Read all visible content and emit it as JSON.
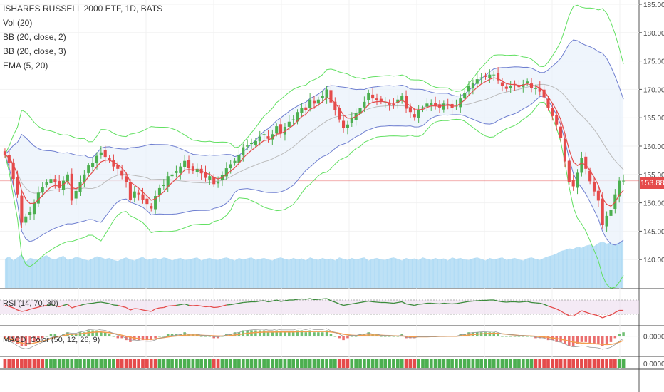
{
  "legend": {
    "title": "ISHARES RUSSELL 2000 ETF, 1D, BATS",
    "studies": [
      "Vol (20)",
      "BB (20, close, 2)",
      "BB (20, close, 3)",
      "EMA (5, 20)"
    ]
  },
  "rsi_label": "RSI (14, 70, 30)",
  "macd_label": "MACD_Color (50, 12, 26, 9)",
  "last_price_label": "153.88",
  "colors": {
    "up": "#4caf50",
    "down": "#e54b4b",
    "bb2": "#6f7fd0",
    "bb3": "#62e062",
    "band_fill": "#e8f1fb",
    "basis": "#bbbbbb",
    "ema": "#e54b4b",
    "volume": "#9fd3f2",
    "rsi": "#3a8a3a",
    "rsi_low": "#e54b4b",
    "rsi_band": "#ecdcef",
    "macd_line": "#f39c4d"
  },
  "chart_data": [
    {
      "type": "candlestick",
      "title": "ISHARES RUSSELL 2000 ETF, 1D, BATS",
      "ylim": [
        135,
        185
      ],
      "yticks": [
        185,
        180,
        175,
        170,
        165,
        160,
        155,
        150,
        145,
        140
      ],
      "ytick_labels": [
        "185.00",
        "180.00",
        "175.00",
        "170.00",
        "165.00",
        "160.00",
        "155.00",
        "150.00",
        "145.00",
        "140.00"
      ],
      "last_price": 153.88,
      "close": [
        158.5,
        157.0,
        154.2,
        151.5,
        146.5,
        147.6,
        148.4,
        150.0,
        151.8,
        152.8,
        153.7,
        154.2,
        153.6,
        152.6,
        153.9,
        155.0,
        150.4,
        152.1,
        153.7,
        155.0,
        156.6,
        157.1,
        158.3,
        158.9,
        158.1,
        157.6,
        156.4,
        156.0,
        154.8,
        153.6,
        150.5,
        152.0,
        151.5,
        150.5,
        149.8,
        149.0,
        151.2,
        152.6,
        153.1,
        154.7,
        155.0,
        155.6,
        156.4,
        157.4,
        156.1,
        155.6,
        156.0,
        155.2,
        154.4,
        154.7,
        153.3,
        153.7,
        154.9,
        156.1,
        156.8,
        157.4,
        158.5,
        159.8,
        160.1,
        160.5,
        160.9,
        161.7,
        162.1,
        161.3,
        162.1,
        163.5,
        162.3,
        163.4,
        164.3,
        164.7,
        166.0,
        166.7,
        166.4,
        168.2,
        167.5,
        168.2,
        168.9,
        170.0,
        167.7,
        166.3,
        164.7,
        163.2,
        163.8,
        164.9,
        165.8,
        166.7,
        167.8,
        169.3,
        168.4,
        168.1,
        167.9,
        167.7,
        167.3,
        167.2,
        168.2,
        168.9,
        166.6,
        166.0,
        165.1,
        166.4,
        166.6,
        167.5,
        167.6,
        167.1,
        166.8,
        167.5,
        167.3,
        166.7,
        167.1,
        168.4,
        169.4,
        170.6,
        171.1,
        171.8,
        172.1,
        172.2,
        172.6,
        172.6,
        171.6,
        170.6,
        170.1,
        170.6,
        170.8,
        170.4,
        170.9,
        171.4,
        170.3,
        170.2,
        169.6,
        168.6,
        166.7,
        165.3,
        163.8,
        161.4,
        157.3,
        153.7,
        152.9,
        155.3,
        157.9,
        156.0,
        153.8,
        152.0,
        150.4,
        146.1,
        147.7,
        148.7,
        151.5,
        153.9,
        153.9
      ],
      "volume_ylim": [
        0,
        100
      ],
      "volume": [
        55,
        60,
        52,
        58,
        64,
        50,
        57,
        55,
        53,
        59,
        62,
        56,
        54,
        58,
        61,
        53,
        55,
        59,
        57,
        54,
        52,
        56,
        60,
        58,
        55,
        57,
        53,
        51,
        55,
        58,
        54,
        52,
        56,
        59,
        53,
        55,
        57,
        54,
        58,
        56,
        52,
        55,
        57,
        53,
        54,
        56,
        58,
        52,
        55,
        57,
        54,
        53,
        56,
        58,
        55,
        52,
        57,
        54,
        56,
        58,
        53,
        55,
        57,
        54,
        52,
        56,
        58,
        55,
        53,
        57,
        54,
        56,
        52,
        58,
        55,
        53,
        57,
        54,
        56,
        52,
        58,
        55,
        53,
        57,
        54,
        56,
        58,
        52,
        55,
        57,
        54,
        53,
        56,
        58,
        55,
        52,
        57,
        54,
        56,
        53,
        58,
        55,
        53,
        57,
        54,
        56,
        52,
        58,
        55,
        57,
        54,
        53,
        56,
        58,
        55,
        52,
        57,
        54,
        56,
        58,
        53,
        55,
        57,
        54,
        52,
        56,
        58,
        55,
        53,
        57,
        60,
        62,
        65,
        70,
        72,
        75,
        74,
        78,
        76,
        80,
        82,
        79,
        85,
        88,
        84,
        86,
        83,
        87,
        90
      ]
    },
    {
      "type": "line",
      "title": "RSI (14, 70, 30)",
      "ylim": [
        0,
        100
      ],
      "band": [
        30,
        70
      ],
      "values": [
        55,
        52,
        48,
        42,
        38,
        40,
        44,
        47,
        50,
        53,
        55,
        57,
        54,
        51,
        55,
        58,
        48,
        52,
        55,
        58,
        60,
        61,
        63,
        64,
        62,
        60,
        56,
        55,
        52,
        49,
        42,
        46,
        45,
        42,
        40,
        38,
        45,
        48,
        49,
        53,
        54,
        55,
        57,
        59,
        55,
        54,
        55,
        53,
        51,
        52,
        49,
        50,
        53,
        56,
        57,
        59,
        61,
        63,
        64,
        65,
        65,
        67,
        68,
        65,
        67,
        70,
        66,
        68,
        70,
        70,
        72,
        73,
        72,
        74,
        71,
        72,
        73,
        74,
        68,
        64,
        59,
        55,
        57,
        59,
        61,
        63,
        65,
        67,
        65,
        64,
        63,
        63,
        62,
        61,
        63,
        65,
        59,
        57,
        55,
        58,
        59,
        61,
        61,
        60,
        59,
        61,
        60,
        59,
        60,
        62,
        64,
        66,
        67,
        68,
        69,
        69,
        70,
        70,
        67,
        65,
        64,
        65,
        65,
        64,
        65,
        66,
        63,
        62,
        61,
        58,
        53,
        49,
        45,
        39,
        32,
        26,
        25,
        33,
        40,
        36,
        32,
        29,
        26,
        20,
        25,
        28,
        35,
        41,
        41
      ]
    },
    {
      "type": "bar",
      "title": "MACD_Color (50, 12, 26, 9)",
      "ylim": [
        -0.01,
        0.005
      ],
      "ytick_labels": [
        "0.0000"
      ],
      "histogram": [
        -0.001,
        -0.002,
        -0.003,
        -0.004,
        -0.005,
        -0.005,
        -0.004,
        -0.003,
        -0.002,
        -0.001,
        0.0,
        0.001,
        0.001,
        0.0,
        0.001,
        0.002,
        0.001,
        0.001,
        0.002,
        0.002,
        0.003,
        0.003,
        0.003,
        0.002,
        0.002,
        0.001,
        0.0,
        -0.001,
        -0.001,
        -0.002,
        -0.003,
        -0.002,
        -0.002,
        -0.002,
        -0.002,
        -0.002,
        -0.001,
        0.0,
        0.0,
        0.001,
        0.001,
        0.001,
        0.001,
        0.002,
        0.001,
        0.001,
        0.001,
        0.0,
        0.0,
        0.0,
        -0.001,
        -0.001,
        0.0,
        0.001,
        0.001,
        0.002,
        0.002,
        0.003,
        0.003,
        0.003,
        0.003,
        0.003,
        0.003,
        0.002,
        0.002,
        0.003,
        0.002,
        0.002,
        0.002,
        0.002,
        0.003,
        0.003,
        0.002,
        0.003,
        0.002,
        0.002,
        0.002,
        0.003,
        0.001,
        0.0,
        -0.001,
        -0.002,
        -0.001,
        0.0,
        0.0,
        0.001,
        0.001,
        0.002,
        0.001,
        0.001,
        0.0,
        0.0,
        0.0,
        0.0,
        0.0,
        0.001,
        -0.001,
        -0.001,
        -0.001,
        0.0,
        0.0,
        0.0,
        0.0,
        0.0,
        0.0,
        0.0,
        0.0,
        0.0,
        0.0,
        0.001,
        0.001,
        0.002,
        0.002,
        0.002,
        0.002,
        0.002,
        0.002,
        0.002,
        0.001,
        0.0,
        0.0,
        0.0,
        0.0,
        0.0,
        0.0,
        0.0,
        0.0,
        -0.001,
        -0.001,
        -0.001,
        -0.002,
        -0.002,
        -0.003,
        -0.003,
        -0.004,
        -0.005,
        -0.005,
        -0.004,
        -0.003,
        -0.003,
        -0.004,
        -0.004,
        -0.004,
        -0.005,
        -0.004,
        -0.003,
        -0.001,
        0.001,
        0.002
      ],
      "signal": [
        -0.001,
        -0.0015,
        -0.002,
        -0.003,
        -0.0035,
        -0.004,
        -0.004,
        -0.0035,
        -0.003,
        -0.0025,
        -0.002,
        -0.0012,
        -0.0005,
        0.0,
        0.0003,
        0.0008,
        0.001,
        0.001,
        0.0012,
        0.0015,
        0.0018,
        0.002,
        0.0022,
        0.0022,
        0.002,
        0.0018,
        0.0014,
        0.001,
        0.0005,
        0.0,
        -0.0005,
        -0.001,
        -0.0012,
        -0.0015,
        -0.0016,
        -0.0016,
        -0.0014,
        -0.001,
        -0.0007,
        -0.0004,
        -0.0001,
        0.0001,
        0.0003,
        0.0005,
        0.0006,
        0.0006,
        0.0006,
        0.0005,
        0.0004,
        0.0003,
        0.0002,
        0.0001,
        0.0001,
        0.0002,
        0.0004,
        0.0006,
        0.0009,
        0.0012,
        0.0015,
        0.0017,
        0.0019,
        0.002,
        0.0021,
        0.0021,
        0.0021,
        0.0022,
        0.0022,
        0.0022,
        0.0022,
        0.0022,
        0.0023,
        0.0023,
        0.0023,
        0.0024,
        0.0024,
        0.0024,
        0.0024,
        0.0024,
        0.0022,
        0.0019,
        0.0015,
        0.001,
        0.0007,
        0.0005,
        0.0004,
        0.0004,
        0.0005,
        0.0006,
        0.0006,
        0.0006,
        0.0005,
        0.0004,
        0.0003,
        0.0002,
        0.0001,
        0.0001,
        0.0,
        -0.0002,
        -0.0003,
        -0.0003,
        -0.0003,
        -0.0003,
        -0.0002,
        -0.0002,
        -0.0001,
        -0.0001,
        0.0,
        0.0,
        0.0,
        0.0002,
        0.0004,
        0.0006,
        0.0008,
        0.001,
        0.0012,
        0.0013,
        0.0014,
        0.0015,
        0.0014,
        0.0012,
        0.001,
        0.0008,
        0.0006,
        0.0004,
        0.0003,
        0.0002,
        0.0001,
        0.0,
        -0.0002,
        -0.0004,
        -0.0006,
        -0.0009,
        -0.0012,
        -0.0016,
        -0.002,
        -0.0025,
        -0.003,
        -0.0033,
        -0.0035,
        -0.0036,
        -0.0037,
        -0.0038,
        -0.004,
        -0.0042,
        -0.0043,
        -0.0042,
        -0.0038,
        -0.0031,
        -0.0022
      ]
    }
  ]
}
